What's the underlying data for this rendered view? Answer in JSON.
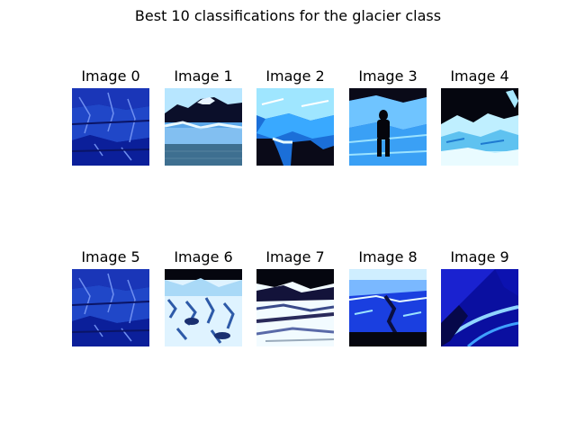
{
  "figure": {
    "title": "Best 10 classifications for the glacier class",
    "images": [
      {
        "label": "Image 0",
        "scene": "glacier-ice-wall"
      },
      {
        "label": "Image 1",
        "scene": "mountain-lake"
      },
      {
        "label": "Image 2",
        "scene": "ice-cave"
      },
      {
        "label": "Image 3",
        "scene": "hiker-on-ice"
      },
      {
        "label": "Image 4",
        "scene": "ice-floes"
      },
      {
        "label": "Image 5",
        "scene": "glacier-ice-wall"
      },
      {
        "label": "Image 6",
        "scene": "snowy-ice-field"
      },
      {
        "label": "Image 7",
        "scene": "ice-ridge"
      },
      {
        "label": "Image 8",
        "scene": "crevasse-river"
      },
      {
        "label": "Image 9",
        "scene": "ice-tunnel"
      }
    ]
  }
}
